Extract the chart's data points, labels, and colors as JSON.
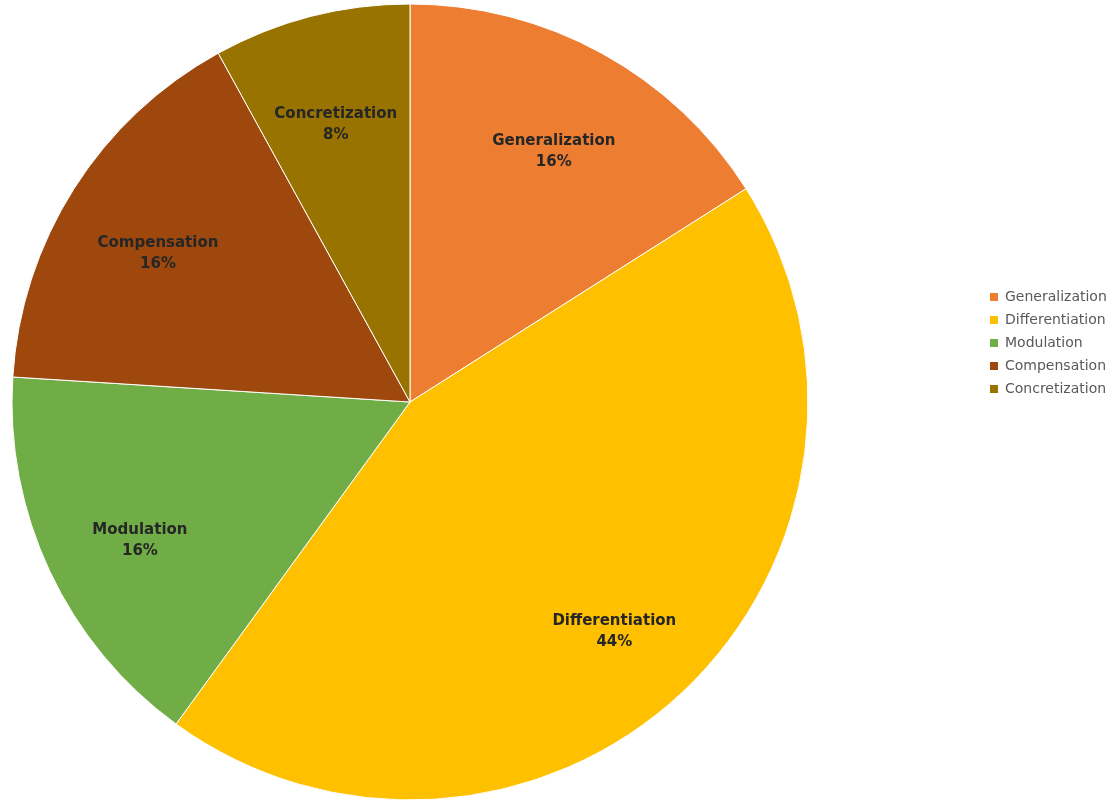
{
  "chart_data": {
    "type": "pie",
    "categories": [
      "Generalization",
      "Differentiation",
      "Modulation",
      "Compensation",
      "Concretization"
    ],
    "values": [
      16,
      44,
      16,
      16,
      8
    ],
    "colors": [
      "#ed7d31",
      "#ffc000",
      "#70ad47",
      "#9e480e",
      "#997300"
    ],
    "value_labels": [
      "16%",
      "44%",
      "16%",
      "16%",
      "8%"
    ],
    "legend": "right"
  }
}
